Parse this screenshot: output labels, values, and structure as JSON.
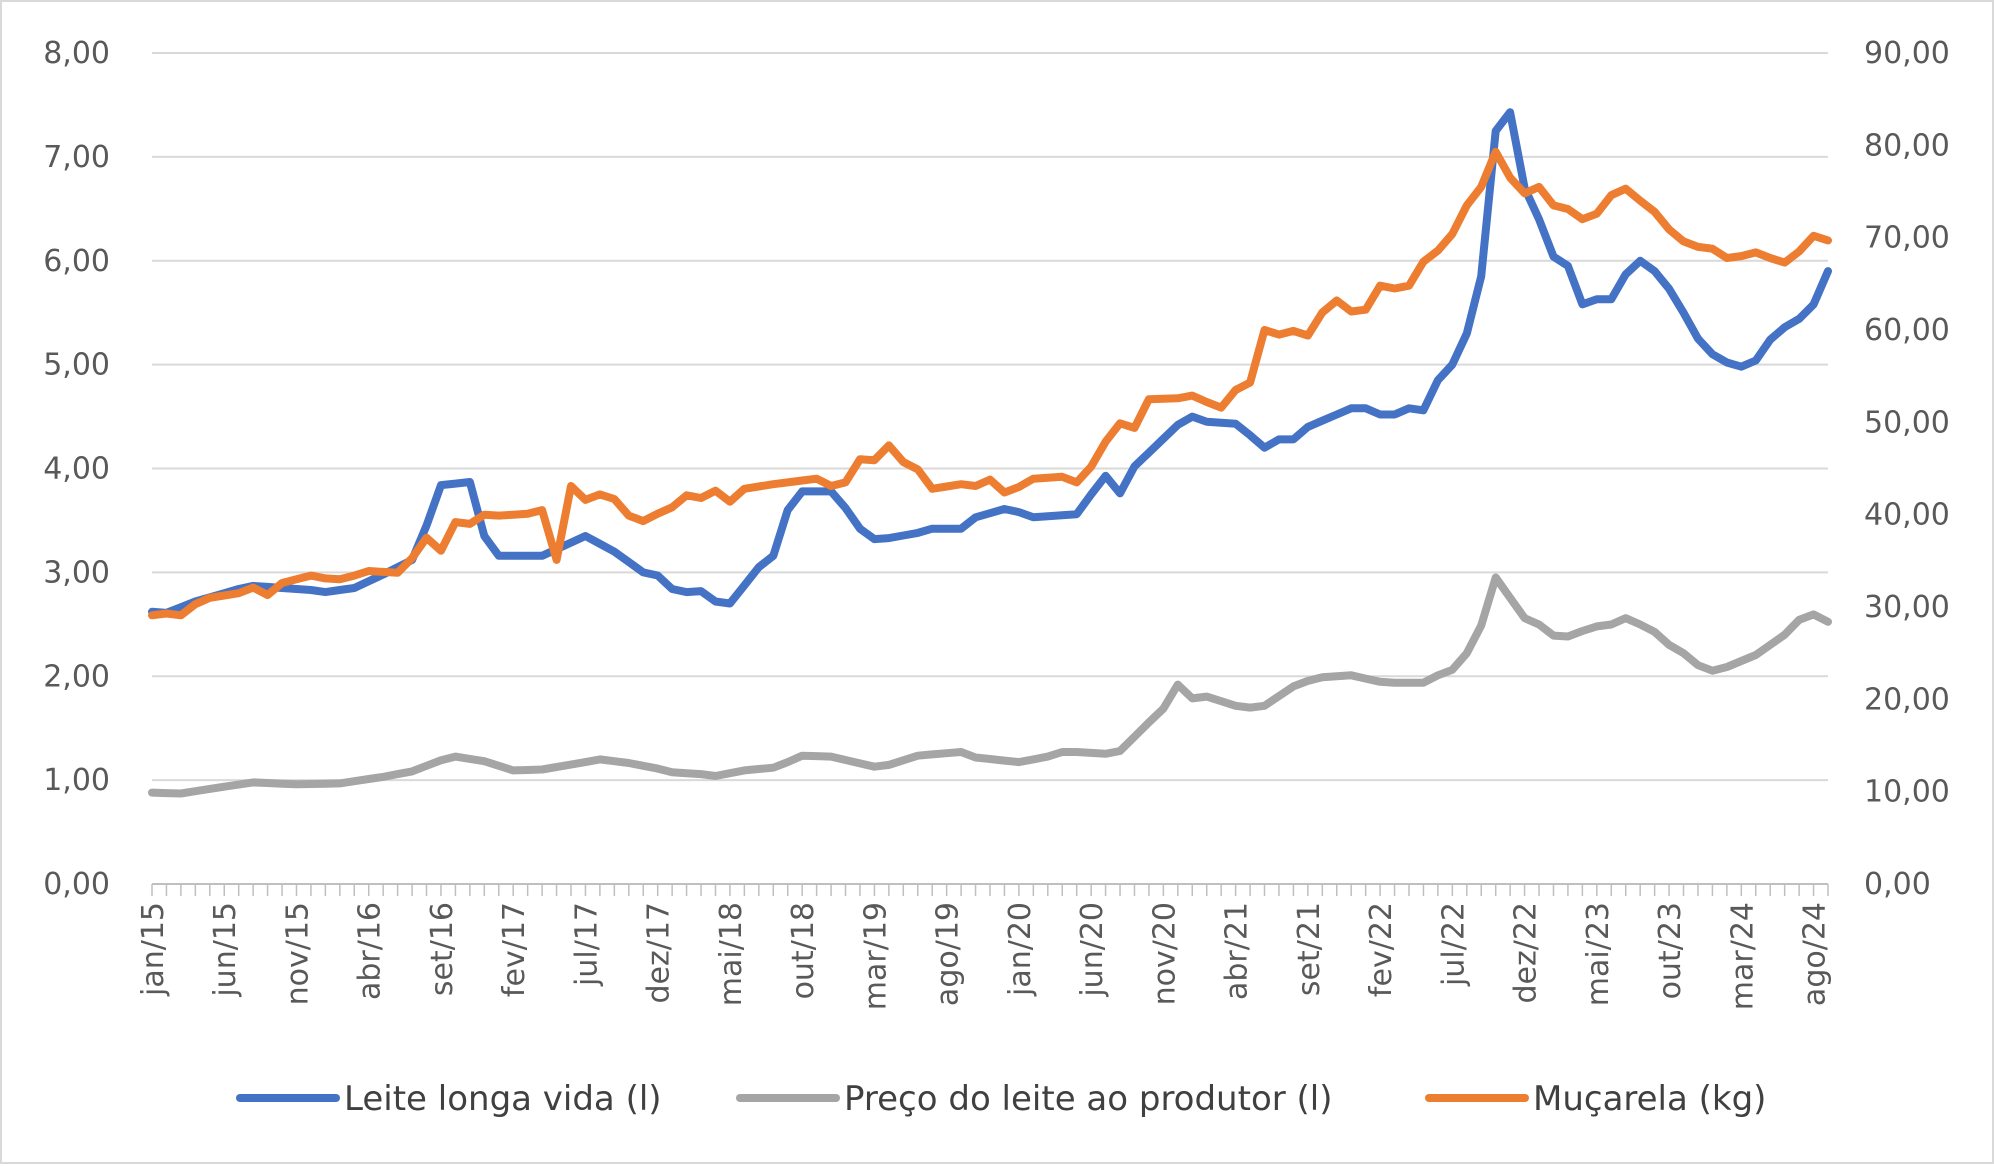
{
  "chart_data": {
    "type": "line",
    "y_left": {
      "ticks": [
        "0,00",
        "1,00",
        "2,00",
        "3,00",
        "4,00",
        "5,00",
        "6,00",
        "7,00",
        "8,00"
      ],
      "range": [
        0,
        8
      ]
    },
    "y_right": {
      "ticks": [
        "0,00",
        "10,00",
        "20,00",
        "30,00",
        "40,00",
        "50,00",
        "60,00",
        "70,00",
        "80,00",
        "90,00"
      ],
      "range": [
        0,
        90
      ]
    },
    "x_tick_labels": [
      "jan/15",
      "jun/15",
      "nov/15",
      "abr/16",
      "set/16",
      "fev/17",
      "jul/17",
      "dez/17",
      "mai/18",
      "out/18",
      "mar/19",
      "ago/19",
      "jan/20",
      "jun/20",
      "nov/20",
      "abr/21",
      "set/21",
      "fev/22",
      "jul/22",
      "dez/22",
      "mai/23",
      "out/23",
      "mar/24",
      "ago/24"
    ],
    "x_tick_step_months": 5,
    "n_points": 117,
    "grid": "horizontal",
    "legend_position": "bottom",
    "series": [
      {
        "name": "Leite longa vida (l)",
        "axis": "left",
        "color": "#4472C4",
        "keypoints": [
          [
            0,
            2.62
          ],
          [
            1,
            2.61
          ],
          [
            3,
            2.72
          ],
          [
            6,
            2.84
          ],
          [
            7,
            2.87
          ],
          [
            9,
            2.85
          ],
          [
            11,
            2.83
          ],
          [
            12,
            2.81
          ],
          [
            14,
            2.85
          ],
          [
            16,
            2.98
          ],
          [
            18,
            3.12
          ],
          [
            19,
            3.45
          ],
          [
            20,
            3.84
          ],
          [
            22,
            3.87
          ],
          [
            23,
            3.35
          ],
          [
            24,
            3.16
          ],
          [
            27,
            3.16
          ],
          [
            30,
            3.35
          ],
          [
            32,
            3.2
          ],
          [
            34,
            3.0
          ],
          [
            35,
            2.97
          ],
          [
            36,
            2.84
          ],
          [
            37,
            2.81
          ],
          [
            38,
            2.82
          ],
          [
            39,
            2.72
          ],
          [
            40,
            2.7
          ],
          [
            42,
            3.05
          ],
          [
            43,
            3.16
          ],
          [
            44,
            3.6
          ],
          [
            45,
            3.78
          ],
          [
            47,
            3.78
          ],
          [
            48,
            3.62
          ],
          [
            49,
            3.42
          ],
          [
            50,
            3.32
          ],
          [
            51,
            3.33
          ],
          [
            53,
            3.38
          ],
          [
            54,
            3.42
          ],
          [
            56,
            3.42
          ],
          [
            57,
            3.53
          ],
          [
            59,
            3.61
          ],
          [
            60,
            3.58
          ],
          [
            61,
            3.53
          ],
          [
            64,
            3.56
          ],
          [
            65,
            3.75
          ],
          [
            66,
            3.93
          ],
          [
            67,
            3.76
          ],
          [
            68,
            4.02
          ],
          [
            71,
            4.42
          ],
          [
            72,
            4.5
          ],
          [
            73,
            4.45
          ],
          [
            75,
            4.43
          ],
          [
            76,
            4.32
          ],
          [
            77,
            4.2
          ],
          [
            78,
            4.28
          ],
          [
            79,
            4.28
          ],
          [
            80,
            4.4
          ],
          [
            82,
            4.52
          ],
          [
            83,
            4.58
          ],
          [
            84,
            4.58
          ],
          [
            85,
            4.52
          ],
          [
            86,
            4.52
          ],
          [
            87,
            4.58
          ],
          [
            88,
            4.56
          ],
          [
            89,
            4.85
          ],
          [
            90,
            5.0
          ],
          [
            91,
            5.3
          ],
          [
            92,
            5.85
          ],
          [
            93,
            7.25
          ],
          [
            94,
            7.43
          ],
          [
            95,
            6.7
          ],
          [
            96,
            6.4
          ],
          [
            97,
            6.04
          ],
          [
            98,
            5.95
          ],
          [
            99,
            5.58
          ],
          [
            100,
            5.63
          ],
          [
            101,
            5.63
          ],
          [
            102,
            5.87
          ],
          [
            103,
            6.0
          ],
          [
            104,
            5.9
          ],
          [
            105,
            5.73
          ],
          [
            106,
            5.5
          ],
          [
            107,
            5.25
          ],
          [
            108,
            5.1
          ],
          [
            109,
            5.02
          ],
          [
            110,
            4.98
          ],
          [
            111,
            5.04
          ],
          [
            112,
            5.24
          ],
          [
            113,
            5.36
          ],
          [
            114,
            5.44
          ],
          [
            115,
            5.58
          ],
          [
            116,
            5.9
          ],
          [
            117,
            5.95
          ],
          [
            118,
            5.9
          ],
          [
            120,
            5.92
          ]
        ]
      },
      {
        "name": "Preço do leite ao produtor (l)",
        "axis": "right",
        "color": "#A5A5A5",
        "keypoints": [
          [
            0,
            9.9
          ],
          [
            2,
            9.8
          ],
          [
            4,
            10.3
          ],
          [
            7,
            11.0
          ],
          [
            10,
            10.8
          ],
          [
            13,
            10.9
          ],
          [
            16,
            11.6
          ],
          [
            18,
            12.2
          ],
          [
            20,
            13.4
          ],
          [
            21,
            13.8
          ],
          [
            23,
            13.3
          ],
          [
            25,
            12.3
          ],
          [
            27,
            12.4
          ],
          [
            30,
            13.2
          ],
          [
            31,
            13.5
          ],
          [
            33,
            13.1
          ],
          [
            35,
            12.5
          ],
          [
            36,
            12.1
          ],
          [
            38,
            11.9
          ],
          [
            39,
            11.7
          ],
          [
            41,
            12.3
          ],
          [
            43,
            12.6
          ],
          [
            44,
            13.2
          ],
          [
            45,
            13.9
          ],
          [
            47,
            13.8
          ],
          [
            50,
            12.7
          ],
          [
            51,
            12.9
          ],
          [
            53,
            13.9
          ],
          [
            56,
            14.3
          ],
          [
            57,
            13.7
          ],
          [
            60,
            13.2
          ],
          [
            62,
            13.8
          ],
          [
            63,
            14.3
          ],
          [
            64,
            14.3
          ],
          [
            66,
            14.1
          ],
          [
            67,
            14.4
          ],
          [
            69,
            17.5
          ],
          [
            70,
            19.0
          ],
          [
            71,
            21.6
          ],
          [
            72,
            20.1
          ],
          [
            73,
            20.3
          ],
          [
            75,
            19.3
          ],
          [
            76,
            19.1
          ],
          [
            77,
            19.3
          ],
          [
            79,
            21.4
          ],
          [
            80,
            22.0
          ],
          [
            81,
            22.4
          ],
          [
            83,
            22.6
          ],
          [
            85,
            21.9
          ],
          [
            86,
            21.8
          ],
          [
            88,
            21.8
          ],
          [
            89,
            22.6
          ],
          [
            90,
            23.2
          ],
          [
            91,
            25.0
          ],
          [
            92,
            28.0
          ],
          [
            93,
            33.2
          ],
          [
            94,
            31.0
          ],
          [
            95,
            28.8
          ],
          [
            96,
            28.1
          ],
          [
            97,
            26.9
          ],
          [
            98,
            26.8
          ],
          [
            99,
            27.4
          ],
          [
            100,
            27.9
          ],
          [
            101,
            28.1
          ],
          [
            102,
            28.8
          ],
          [
            103,
            28.1
          ],
          [
            104,
            27.3
          ],
          [
            105,
            25.9
          ],
          [
            106,
            25.0
          ],
          [
            107,
            23.7
          ],
          [
            108,
            23.1
          ],
          [
            109,
            23.5
          ],
          [
            111,
            24.8
          ],
          [
            112,
            25.9
          ],
          [
            113,
            27.0
          ],
          [
            114,
            28.6
          ],
          [
            115,
            29.2
          ],
          [
            116,
            28.4
          ],
          [
            117,
            28.9
          ],
          [
            118,
            29.5
          ]
        ]
      },
      {
        "name": "Muçarela (kg)",
        "axis": "right",
        "color": "#ED7D31",
        "keypoints": [
          [
            0,
            29.1
          ],
          [
            1,
            29.3
          ],
          [
            2,
            29.1
          ],
          [
            3,
            30.3
          ],
          [
            4,
            31.0
          ],
          [
            6,
            31.5
          ],
          [
            7,
            32.1
          ],
          [
            8,
            31.3
          ],
          [
            9,
            32.6
          ],
          [
            11,
            33.4
          ],
          [
            12,
            33.1
          ],
          [
            13,
            33.0
          ],
          [
            14,
            33.4
          ],
          [
            15,
            33.9
          ],
          [
            17,
            33.7
          ],
          [
            18,
            35.3
          ],
          [
            19,
            37.5
          ],
          [
            20,
            36.1
          ],
          [
            21,
            39.2
          ],
          [
            22,
            39.0
          ],
          [
            23,
            40.0
          ],
          [
            24,
            39.9
          ],
          [
            26,
            40.1
          ],
          [
            27,
            40.5
          ],
          [
            28,
            35.1
          ],
          [
            29,
            43.1
          ],
          [
            30,
            41.6
          ],
          [
            31,
            42.2
          ],
          [
            32,
            41.7
          ],
          [
            33,
            39.9
          ],
          [
            34,
            39.3
          ],
          [
            35,
            40.1
          ],
          [
            36,
            40.8
          ],
          [
            37,
            42.1
          ],
          [
            38,
            41.8
          ],
          [
            39,
            42.6
          ],
          [
            40,
            41.4
          ],
          [
            41,
            42.8
          ],
          [
            43,
            43.3
          ],
          [
            44,
            43.5
          ],
          [
            46,
            43.9
          ],
          [
            47,
            43.1
          ],
          [
            48,
            43.5
          ],
          [
            49,
            46.0
          ],
          [
            50,
            45.9
          ],
          [
            51,
            47.5
          ],
          [
            52,
            45.7
          ],
          [
            53,
            44.9
          ],
          [
            54,
            42.8
          ],
          [
            56,
            43.3
          ],
          [
            57,
            43.1
          ],
          [
            58,
            43.8
          ],
          [
            59,
            42.4
          ],
          [
            60,
            43.0
          ],
          [
            61,
            43.9
          ],
          [
            63,
            44.1
          ],
          [
            64,
            43.5
          ],
          [
            65,
            45.2
          ],
          [
            66,
            47.9
          ],
          [
            67,
            49.9
          ],
          [
            68,
            49.4
          ],
          [
            69,
            52.5
          ],
          [
            71,
            52.6
          ],
          [
            72,
            52.9
          ],
          [
            73,
            52.2
          ],
          [
            74,
            51.6
          ],
          [
            75,
            53.5
          ],
          [
            76,
            54.3
          ],
          [
            77,
            60.0
          ],
          [
            78,
            59.5
          ],
          [
            79,
            59.9
          ],
          [
            80,
            59.4
          ],
          [
            81,
            61.9
          ],
          [
            82,
            63.2
          ],
          [
            83,
            62.0
          ],
          [
            84,
            62.2
          ],
          [
            85,
            64.8
          ],
          [
            86,
            64.5
          ],
          [
            87,
            64.8
          ],
          [
            88,
            67.4
          ],
          [
            89,
            68.6
          ],
          [
            90,
            70.4
          ],
          [
            91,
            73.5
          ],
          [
            92,
            75.5
          ],
          [
            93,
            79.3
          ],
          [
            94,
            76.5
          ],
          [
            95,
            74.8
          ],
          [
            96,
            75.5
          ],
          [
            97,
            73.5
          ],
          [
            98,
            73.1
          ],
          [
            99,
            72.0
          ],
          [
            100,
            72.6
          ],
          [
            101,
            74.6
          ],
          [
            102,
            75.3
          ],
          [
            103,
            74.0
          ],
          [
            104,
            72.8
          ],
          [
            105,
            70.9
          ],
          [
            106,
            69.6
          ],
          [
            107,
            69.0
          ],
          [
            108,
            68.8
          ],
          [
            109,
            67.8
          ],
          [
            110,
            68.0
          ],
          [
            111,
            68.4
          ],
          [
            112,
            67.8
          ],
          [
            113,
            67.3
          ],
          [
            114,
            68.5
          ],
          [
            115,
            70.2
          ],
          [
            116,
            69.7
          ],
          [
            117,
            68.0
          ],
          [
            118,
            68.0
          ]
        ]
      }
    ]
  }
}
